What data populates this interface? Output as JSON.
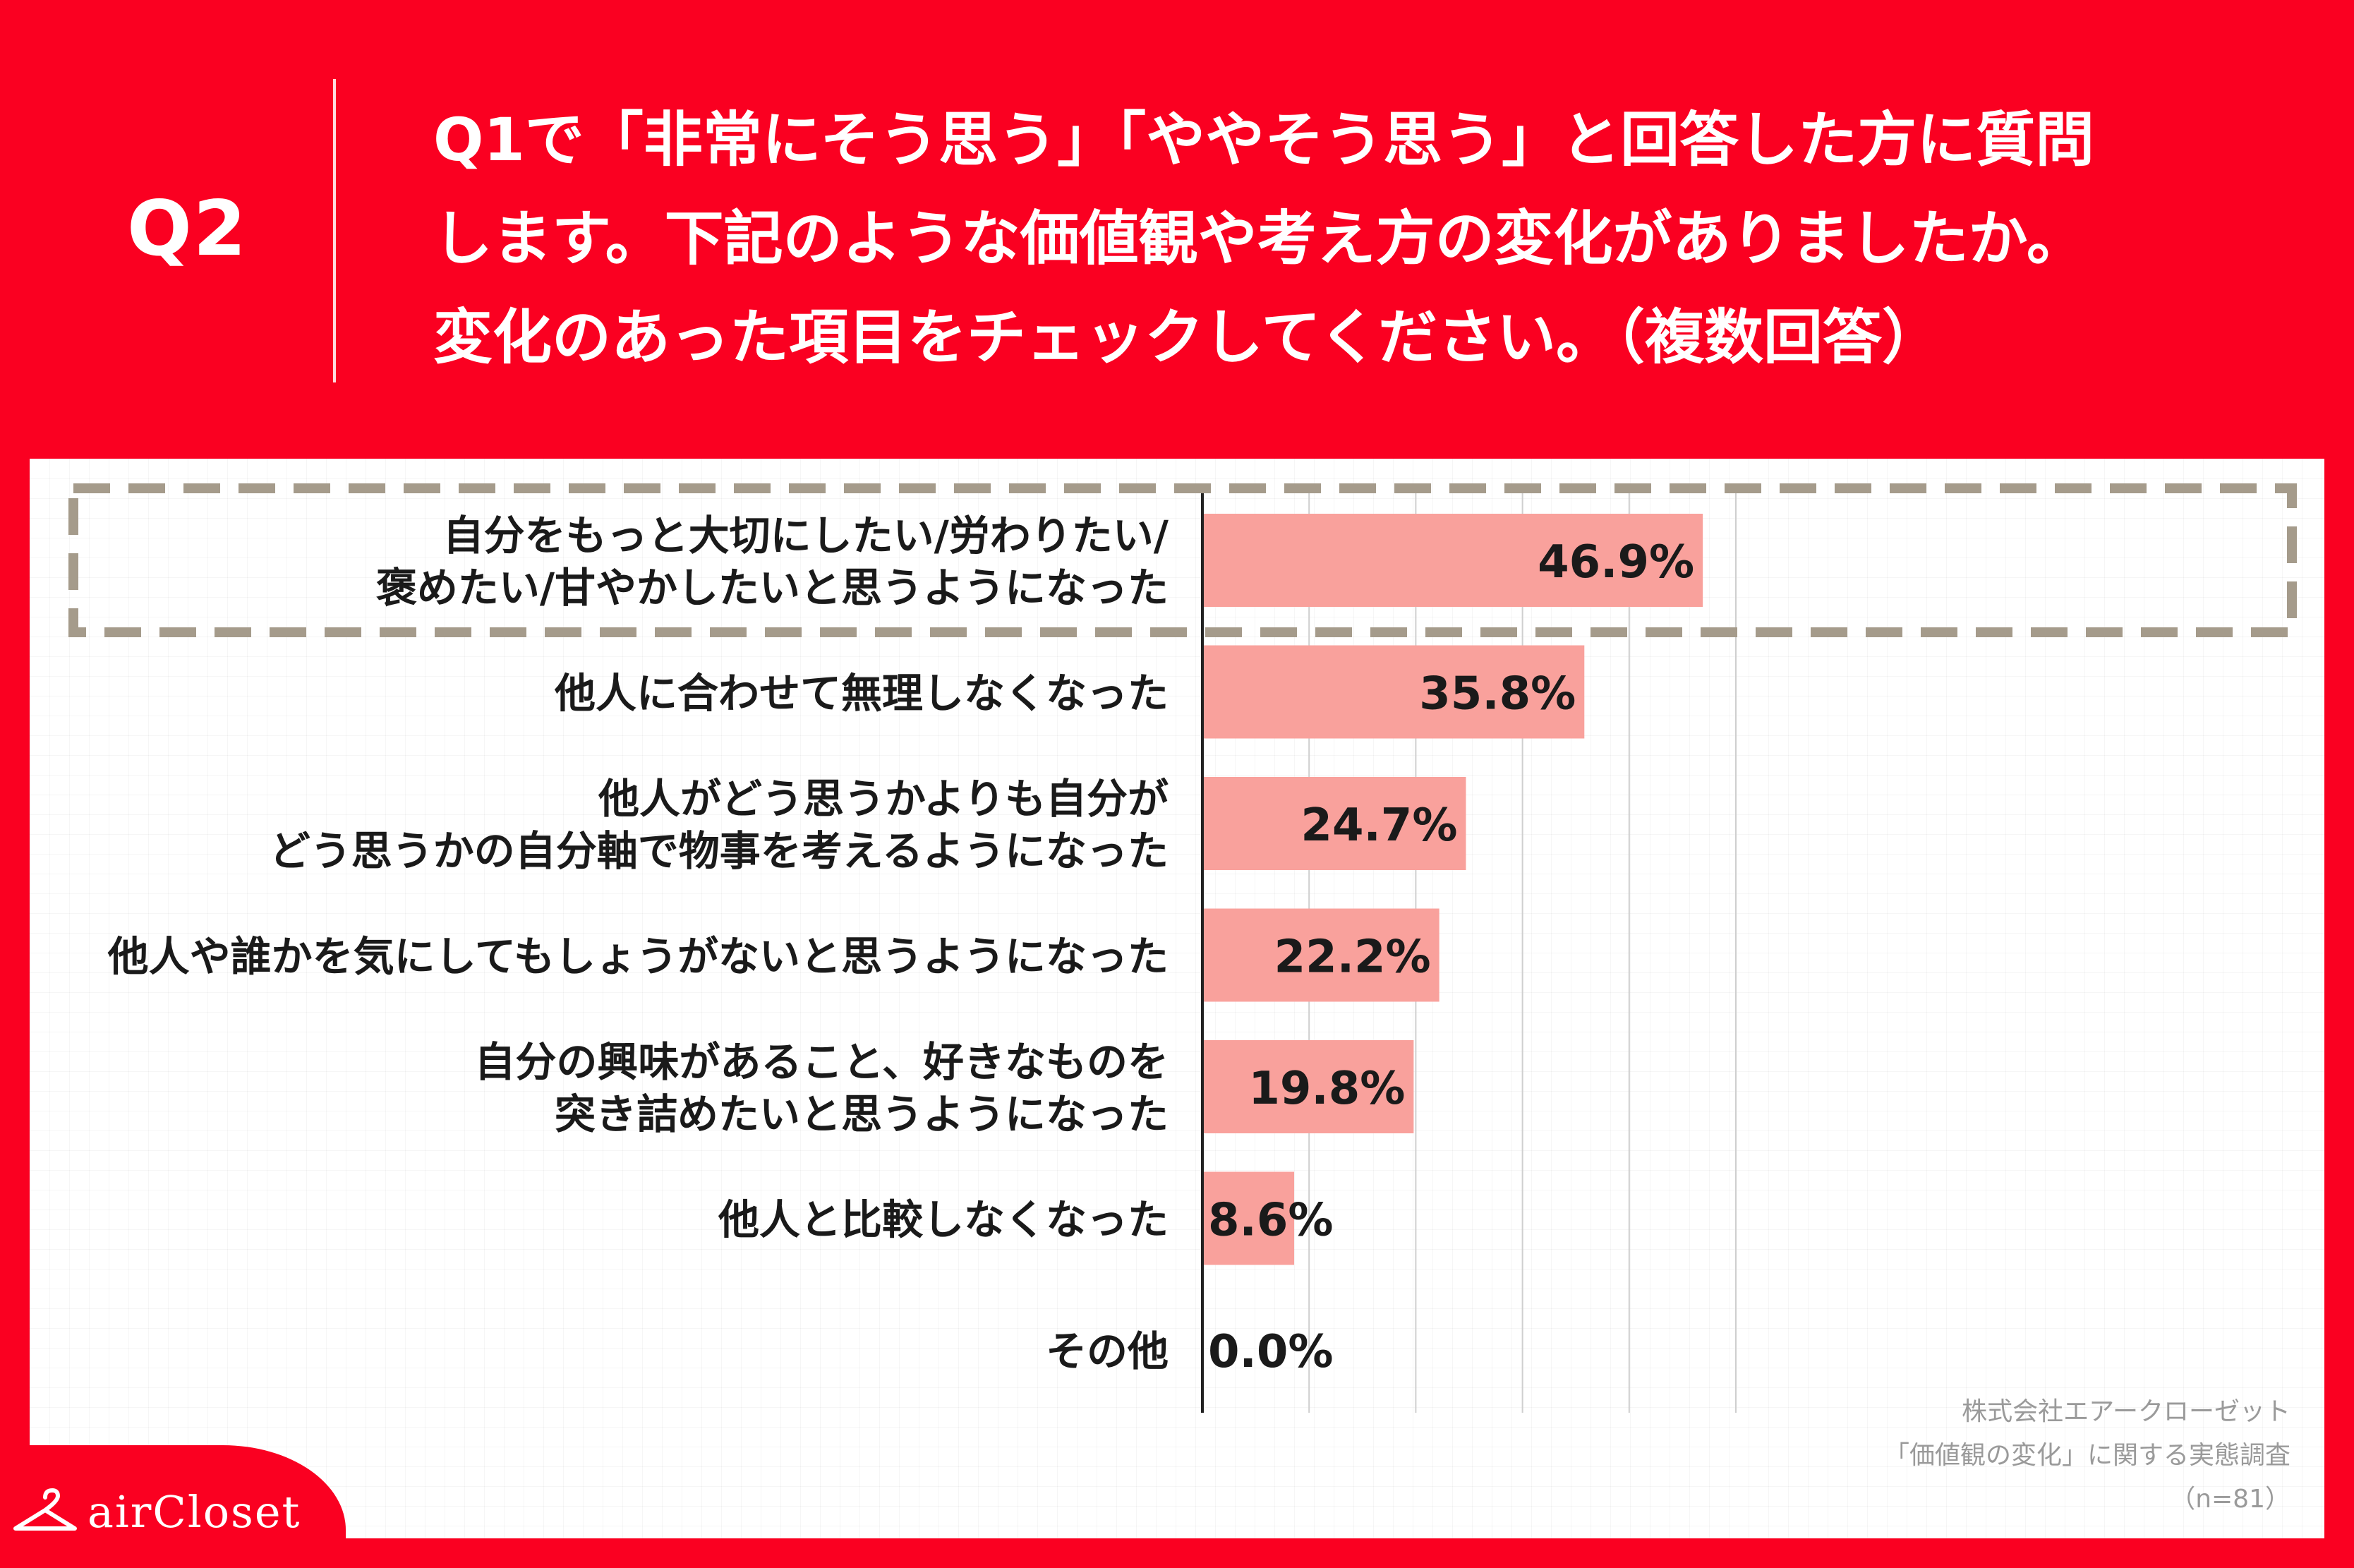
{
  "header": {
    "q_label": "Q2",
    "question_lines": [
      "Q1で「非常にそう思う」「ややそう思う」と回答した方に質問",
      "します。下記のような価値観や考え方の変化がありましたか。",
      "変化のあった項目をチェックしてください。（複数回答）"
    ]
  },
  "chart_data": {
    "type": "bar",
    "orientation": "horizontal",
    "categories": [
      [
        "自分をもっと大切にしたい/労わりたい/",
        "褒めたい/甘やかしたいと思うようになった"
      ],
      [
        "他人に合わせて無理しなくなった"
      ],
      [
        "他人がどう思うかよりも自分が",
        "どう思うかの自分軸で物事を考えるようになった"
      ],
      [
        "他人や誰かを気にしてもしょうがないと思うようになった"
      ],
      [
        "自分の興味があること、好きなものを",
        "突き詰めたいと思うようになった"
      ],
      [
        "他人と比較しなくなった"
      ],
      [
        "その他"
      ]
    ],
    "values": [
      46.9,
      35.8,
      24.7,
      22.2,
      19.8,
      8.6,
      0.0
    ],
    "value_labels": [
      "46.9%",
      "35.8%",
      "24.7%",
      "22.2%",
      "19.8%",
      "8.6%",
      "0.0%"
    ],
    "xlim": [
      0,
      50
    ],
    "grid_step": 10,
    "highlighted_index": 0,
    "bar_color": "#F9A19C",
    "highlight_border_color": "#A59B8B"
  },
  "brand": {
    "logo_text": "airCloset",
    "accent_color": "#FA0021"
  },
  "source": {
    "lines": [
      "株式会社エアークローゼット",
      "「価値観の変化」に関する実態調査",
      "（n=81）"
    ]
  }
}
